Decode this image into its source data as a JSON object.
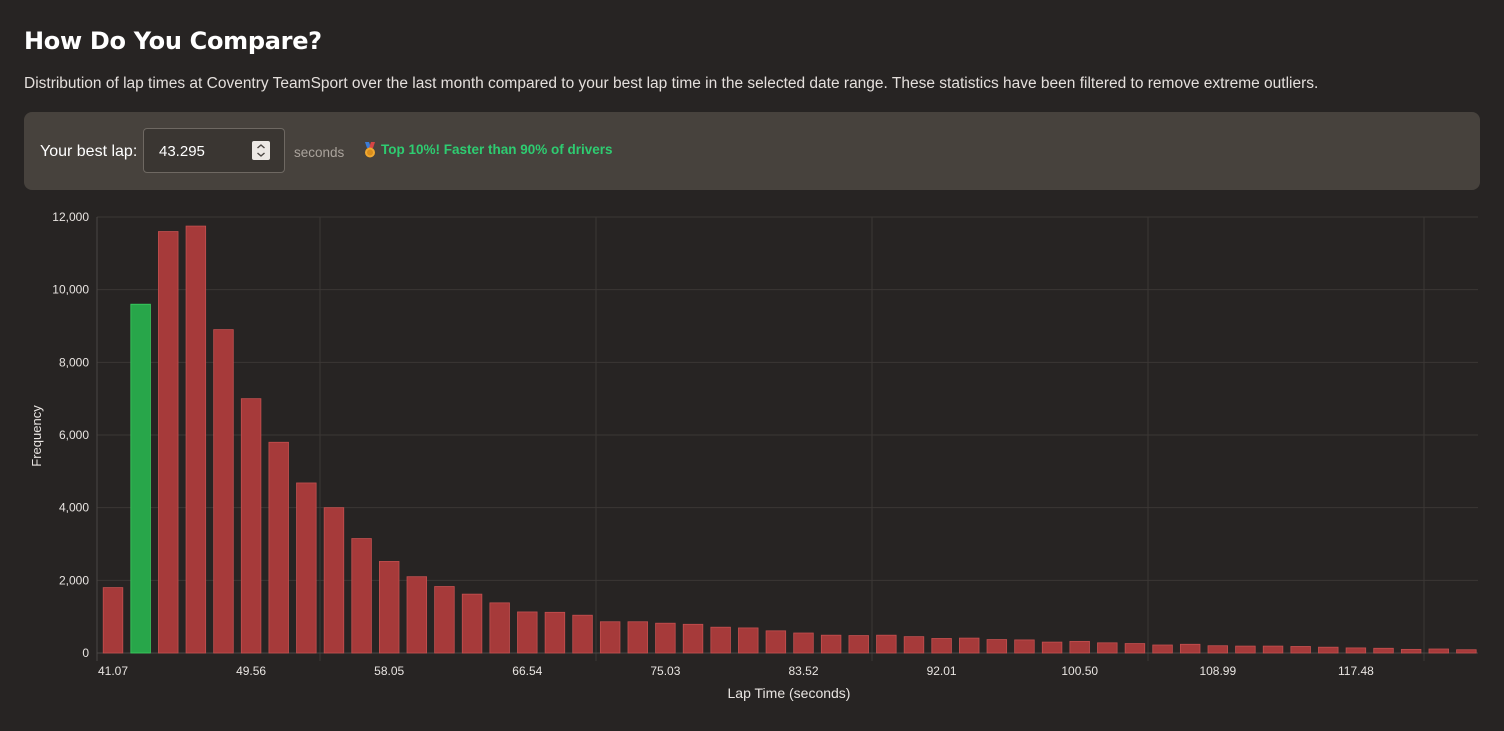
{
  "header": {
    "title": "How Do You Compare?",
    "description": "Distribution of lap times at Coventry TeamSport over the last month compared to your best lap time in the selected date range. These statistics have been filtered to remove extreme outliers."
  },
  "controls": {
    "best_lap_label": "Your best lap:",
    "best_lap_value": "43.295",
    "unit_label": "seconds",
    "badge_icon": "medal-icon",
    "badge_text": "Top 10%! Faster than 90% of drivers"
  },
  "colors": {
    "bar": "#a63a3a",
    "highlight_bar": "#28a64a",
    "badge": "#2ecc71",
    "background": "#272423"
  },
  "chart_data": {
    "type": "bar",
    "xlabel": "Lap Time (seconds)",
    "ylabel": "Frequency",
    "ylim": [
      0,
      12000
    ],
    "yticks": [
      "0",
      "2,000",
      "4,000",
      "6,000",
      "8,000",
      "10,000",
      "12,000"
    ],
    "xticks": [
      "41.07",
      "49.56",
      "58.05",
      "66.54",
      "75.03",
      "83.52",
      "92.01",
      "100.50",
      "108.99",
      "117.48"
    ],
    "highlight_index": 1,
    "grid": true,
    "values": [
      1800,
      9600,
      11600,
      11750,
      8900,
      7000,
      5800,
      4680,
      4000,
      3150,
      2520,
      2100,
      1830,
      1620,
      1380,
      1130,
      1120,
      1040,
      860,
      860,
      820,
      790,
      710,
      690,
      610,
      550,
      490,
      480,
      490,
      450,
      400,
      410,
      370,
      360,
      300,
      320,
      280,
      260,
      220,
      240,
      200,
      190,
      190,
      180,
      160,
      140,
      130,
      100,
      110,
      90
    ]
  }
}
